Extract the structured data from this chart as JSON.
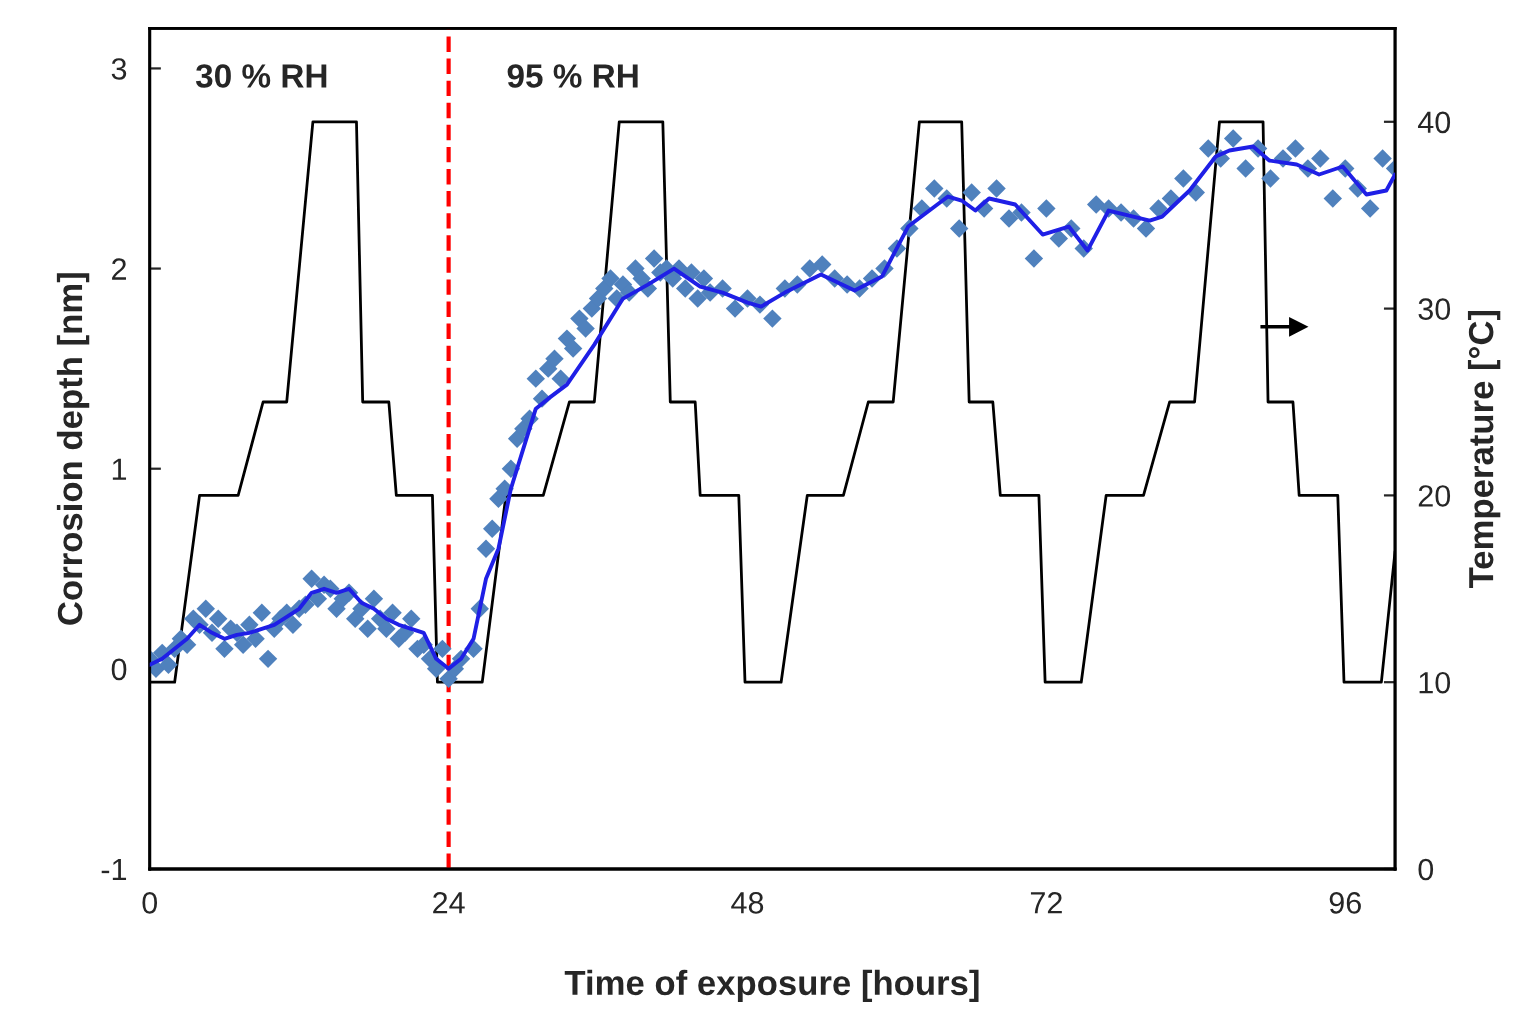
{
  "chart_data": {
    "type": "scatter",
    "xlabel": "Time of exposure [hours]",
    "ylabel": "Corrosion depth [nm]",
    "y2label": "Temperature [°C]",
    "xlim": [
      0,
      100
    ],
    "xticks": [
      0,
      24,
      48,
      72,
      96
    ],
    "ylim": [
      -1,
      3.2
    ],
    "yticks": [
      -1,
      0,
      1,
      2,
      3
    ],
    "y2lim": [
      0,
      45
    ],
    "y2ticks": [
      0,
      10,
      20,
      30,
      40
    ],
    "grid": false,
    "legend": false,
    "annotations": [
      "30 % RH",
      "95 % RH"
    ],
    "ref_lines": [
      {
        "axis": "x",
        "value": 24,
        "color": "#ff0000",
        "line_style": "dashed"
      }
    ],
    "series": [
      {
        "type": "line",
        "axis": "y2",
        "color": "#000000",
        "marker": "none",
        "line_style": "solid",
        "x": [
          0,
          2.0,
          4.0,
          7.1,
          9.1,
          11.0,
          13.1,
          16.6,
          17.1,
          19.2,
          19.8,
          22.7,
          23.1,
          26.7,
          28.6,
          31.6,
          33.7,
          35.7,
          37.7,
          41.2,
          41.8,
          43.8,
          44.2,
          47.3,
          47.8,
          50.7,
          52.8,
          55.7,
          57.7,
          59.7,
          61.8,
          65.2,
          65.8,
          67.7,
          68.3,
          71.4,
          71.9,
          74.8,
          76.8,
          79.8,
          81.9,
          83.9,
          85.9,
          89.4,
          89.8,
          91.8,
          92.3,
          95.4,
          95.9,
          98.9,
          100
        ],
        "values": [
          10,
          10,
          20,
          20,
          25,
          25,
          40,
          40,
          25,
          25,
          20,
          20,
          10,
          10,
          20,
          20,
          25,
          25,
          40,
          40,
          25,
          25,
          20,
          20,
          10,
          10,
          20,
          20,
          25,
          25,
          40,
          40,
          25,
          25,
          20,
          20,
          10,
          10,
          20,
          20,
          25,
          25,
          40,
          40,
          25,
          25,
          20,
          20,
          10,
          10,
          17
        ]
      },
      {
        "type": "line",
        "axis": "y",
        "color": "#1f1fe6",
        "marker": "none",
        "line_style": "solid",
        "x": [
          0,
          1,
          2,
          3,
          4,
          5,
          6,
          7,
          8,
          9,
          10,
          11,
          12,
          13,
          14,
          15,
          16,
          17,
          18,
          19,
          20,
          21,
          22,
          23,
          24,
          25,
          26,
          27,
          28,
          29,
          30,
          31,
          32,
          33.5,
          35.7,
          38,
          40,
          42.1,
          44.2,
          46,
          48,
          49.1,
          51,
          53.9,
          56.6,
          58.8,
          60.9,
          64.1,
          65.2,
          66.3,
          67.4,
          69.5,
          71.7,
          73.8,
          75.3,
          77.0,
          80.3,
          81.3,
          83.5,
          85.6,
          86.7,
          88.6,
          89.9,
          92.1,
          93.9,
          95.8,
          97.7,
          99.3,
          100
        ],
        "values": [
          0.02,
          0.05,
          0.1,
          0.15,
          0.22,
          0.18,
          0.15,
          0.17,
          0.18,
          0.2,
          0.22,
          0.26,
          0.3,
          0.38,
          0.4,
          0.38,
          0.4,
          0.33,
          0.3,
          0.25,
          0.22,
          0.2,
          0.18,
          0.05,
          0.0,
          0.05,
          0.15,
          0.45,
          0.6,
          0.9,
          1.1,
          1.3,
          1.35,
          1.42,
          1.62,
          1.85,
          1.92,
          2.0,
          1.91,
          1.88,
          1.83,
          1.81,
          1.88,
          1.97,
          1.89,
          1.96,
          2.21,
          2.36,
          2.34,
          2.29,
          2.35,
          2.32,
          2.17,
          2.21,
          2.09,
          2.29,
          2.24,
          2.26,
          2.39,
          2.56,
          2.59,
          2.61,
          2.54,
          2.52,
          2.47,
          2.51,
          2.37,
          2.39,
          2.47
        ]
      },
      {
        "axis": "y",
        "color": "#4f81bd",
        "marker": "diamond",
        "x": [
          0,
          0.5,
          1,
          1.5,
          2,
          2.5,
          3,
          3.5,
          4,
          4.5,
          5,
          5.5,
          6,
          6.5,
          7,
          7.5,
          8,
          8.5,
          9,
          9.5,
          10,
          10.5,
          11,
          11.5,
          12,
          12.5,
          13,
          13.5,
          14,
          14.5,
          15,
          15.5,
          16,
          16.5,
          17,
          17.5,
          18,
          18.5,
          19,
          19.5,
          20,
          20.5,
          21,
          21.5,
          22,
          22.5,
          23,
          23.5,
          24,
          24.5,
          25,
          26,
          26.5,
          27,
          27.5,
          28,
          28.5,
          29,
          29.5,
          30,
          30.5,
          31,
          31.5,
          32,
          32.5,
          33,
          33.5,
          34,
          34.5,
          35,
          35.5,
          36,
          36.5,
          37,
          37.5,
          38,
          38.5,
          39,
          39.5,
          40,
          40.5,
          41,
          41.5,
          42,
          42.5,
          43,
          43.5,
          44,
          44.5,
          45,
          46,
          47,
          48,
          49,
          50,
          51,
          52,
          53,
          54,
          55,
          56,
          57,
          58,
          59,
          60,
          61,
          62,
          63,
          64,
          65,
          66,
          67,
          68,
          69,
          70,
          71,
          72,
          73,
          74,
          75,
          76,
          77,
          78,
          79,
          80,
          81,
          82,
          83,
          84,
          85,
          86,
          87,
          88,
          89,
          90,
          91,
          92,
          93,
          94,
          95,
          96,
          97,
          98,
          99,
          100
        ],
        "values": [
          0.05,
          0.0,
          0.08,
          0.02,
          0.1,
          0.15,
          0.12,
          0.25,
          0.22,
          0.3,
          0.18,
          0.25,
          0.1,
          0.2,
          0.18,
          0.12,
          0.22,
          0.15,
          0.28,
          0.05,
          0.2,
          0.25,
          0.28,
          0.22,
          0.3,
          0.32,
          0.45,
          0.35,
          0.42,
          0.4,
          0.3,
          0.35,
          0.38,
          0.25,
          0.3,
          0.2,
          0.35,
          0.25,
          0.2,
          0.28,
          0.15,
          0.18,
          0.25,
          0.1,
          0.12,
          0.05,
          0.0,
          0.1,
          -0.05,
          0.0,
          0.05,
          0.1,
          0.3,
          0.6,
          0.7,
          0.85,
          0.9,
          1.0,
          1.15,
          1.2,
          1.25,
          1.45,
          1.35,
          1.5,
          1.55,
          1.45,
          1.65,
          1.6,
          1.75,
          1.7,
          1.8,
          1.85,
          1.9,
          1.95,
          1.85,
          1.92,
          1.88,
          2.0,
          1.95,
          1.9,
          2.05,
          1.98,
          2.0,
          1.95,
          2.0,
          1.9,
          1.98,
          1.85,
          1.95,
          1.88,
          1.9,
          1.8,
          1.85,
          1.82,
          1.75,
          1.9,
          1.92,
          2.0,
          2.02,
          1.95,
          1.92,
          1.9,
          1.95,
          2.0,
          2.1,
          2.2,
          2.3,
          2.4,
          2.35,
          2.2,
          2.38,
          2.3,
          2.4,
          2.25,
          2.28,
          2.05,
          2.3,
          2.15,
          2.2,
          2.1,
          2.32,
          2.3,
          2.28,
          2.25,
          2.2,
          2.3,
          2.35,
          2.45,
          2.38,
          2.6,
          2.55,
          2.65,
          2.5,
          2.6,
          2.45,
          2.55,
          2.6,
          2.5,
          2.55,
          2.35,
          2.5,
          2.4,
          2.3,
          2.55,
          2.5
        ]
      }
    ]
  }
}
